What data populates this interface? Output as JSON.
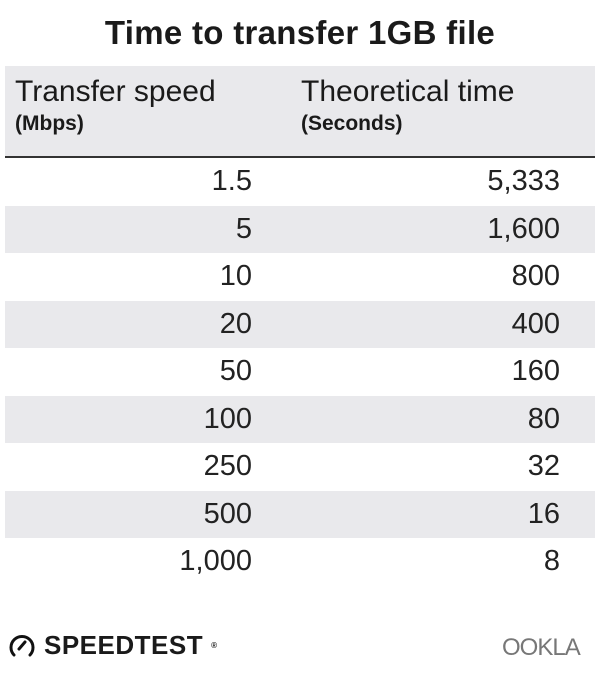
{
  "chart_data": {
    "type": "table",
    "title": "Time to transfer 1GB file",
    "columns": [
      {
        "label": "Transfer speed",
        "unit": "(Mbps)"
      },
      {
        "label": "Theoretical time",
        "unit": "(Seconds)"
      }
    ],
    "rows": [
      [
        "1.5",
        "5,333"
      ],
      [
        "5",
        "1,600"
      ],
      [
        "10",
        "800"
      ],
      [
        "20",
        "400"
      ],
      [
        "50",
        "160"
      ],
      [
        "100",
        "80"
      ],
      [
        "250",
        "32"
      ],
      [
        "500",
        "16"
      ],
      [
        "1,000",
        "8"
      ]
    ],
    "row_stripe_color": "#e9e9ec"
  },
  "footer": {
    "speedtest_logo": "SPEEDTEST",
    "ookla_logo": "OOKLA"
  }
}
